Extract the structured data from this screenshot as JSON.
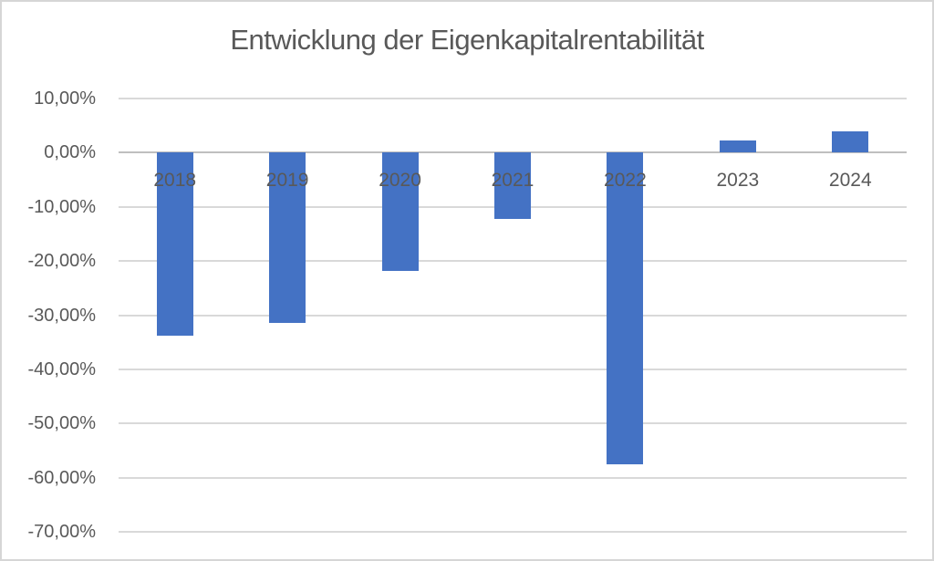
{
  "chart_data": {
    "type": "bar",
    "title": "Entwicklung der Eigenkapitalrentabilität",
    "categories": [
      "2018",
      "2019",
      "2020",
      "2021",
      "2022",
      "2023",
      "2024"
    ],
    "values": [
      -33.8,
      -31.4,
      -21.9,
      -12.3,
      -57.6,
      2.2,
      3.9
    ],
    "xlabel": "",
    "ylabel": "",
    "ylim": [
      -70,
      10
    ],
    "ytick_step": 10,
    "yticks": [
      {
        "value": 10,
        "label": "10,00%"
      },
      {
        "value": 0,
        "label": "0,00%"
      },
      {
        "value": -10,
        "label": "-10,00%"
      },
      {
        "value": -20,
        "label": "-20,00%"
      },
      {
        "value": -30,
        "label": "-30,00%"
      },
      {
        "value": -40,
        "label": "-40,00%"
      },
      {
        "value": -50,
        "label": "-50,00%"
      },
      {
        "value": -60,
        "label": "-60,00%"
      },
      {
        "value": -70,
        "label": "-70,00%"
      }
    ],
    "grid": true,
    "legend": false,
    "colors": {
      "bar": "#4472C4",
      "gridline": "#D9D9D9",
      "zero_axis": "#BFBFBF",
      "text": "#595959",
      "frame_border": "#D6D6D6",
      "background": "#FFFFFF"
    }
  }
}
